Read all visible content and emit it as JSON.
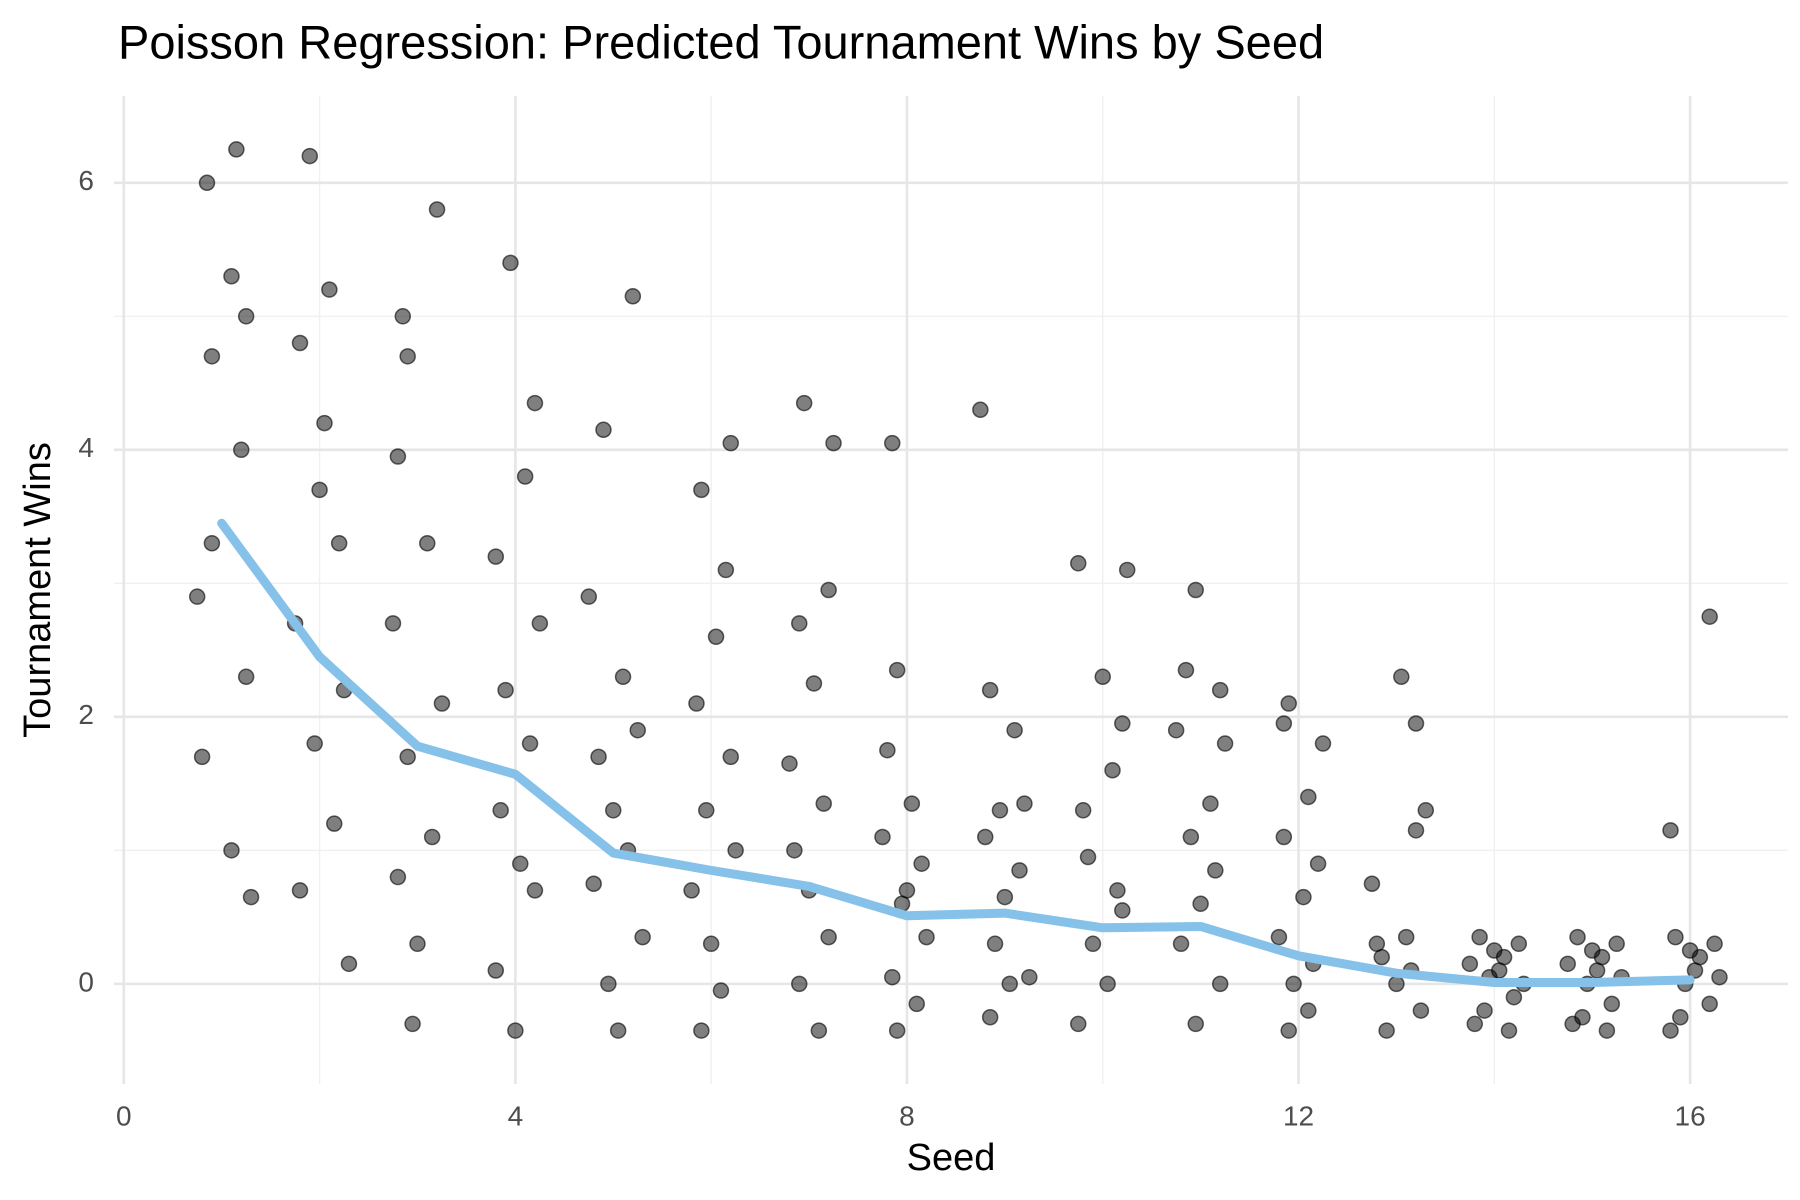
{
  "chart_data": {
    "type": "scatter",
    "title": "Poisson Regression: Predicted Tournament Wins by Seed",
    "x_label": "Seed",
    "y_label": "Tournament Wins",
    "xlim": [
      -0.1,
      17
    ],
    "ylim": [
      -0.75,
      6.65
    ],
    "xticks": [
      0,
      4,
      8,
      12,
      16
    ],
    "yticks": [
      0,
      2,
      4,
      6
    ],
    "grid": true,
    "color": "#000000",
    "x": [
      0.85,
      1.1,
      0.9,
      1.2,
      0.9,
      0.75,
      1.25,
      0.8,
      1.1,
      1.3,
      1.15,
      1.25,
      1.9,
      2.1,
      1.8,
      2.05,
      2.2,
      1.75,
      2.25,
      1.95,
      2.15,
      1.8,
      2.3,
      2.0,
      3.2,
      2.9,
      2.8,
      3.1,
      2.75,
      3.25,
      2.9,
      3.15,
      2.8,
      3.0,
      2.95,
      2.85,
      3.95,
      4.2,
      4.1,
      3.8,
      4.25,
      3.9,
      4.15,
      3.85,
      4.05,
      4.2,
      3.8,
      4.0,
      5.2,
      4.9,
      4.75,
      5.1,
      5.25,
      4.85,
      5.0,
      5.15,
      4.8,
      5.3,
      4.95,
      5.05,
      6.2,
      5.9,
      6.15,
      6.05,
      5.85,
      6.2,
      5.95,
      6.25,
      5.8,
      6.0,
      6.1,
      5.9,
      6.95,
      7.25,
      7.2,
      6.9,
      7.05,
      6.8,
      7.15,
      6.85,
      7.0,
      7.2,
      6.9,
      7.1,
      7.85,
      7.9,
      7.8,
      8.05,
      7.75,
      8.15,
      7.95,
      8.2,
      7.85,
      8.1,
      7.9,
      8.0,
      8.75,
      8.85,
      9.1,
      9.2,
      8.8,
      9.15,
      9.0,
      8.9,
      9.25,
      8.85,
      8.95,
      9.05,
      9.75,
      10.25,
      10.0,
      10.2,
      10.1,
      9.8,
      9.85,
      10.15,
      9.9,
      10.05,
      9.75,
      10.2,
      10.95,
      10.85,
      11.2,
      11.25,
      11.1,
      10.9,
      11.15,
      11.0,
      10.8,
      11.2,
      10.95,
      10.75,
      11.9,
      12.25,
      12.1,
      11.85,
      12.2,
      12.05,
      11.8,
      12.15,
      11.95,
      12.1,
      11.9,
      11.85,
      13.05,
      13.2,
      13.3,
      13.2,
      12.75,
      13.1,
      12.85,
      13.0,
      13.25,
      12.9,
      13.15,
      12.8,
      13.85,
      14.1,
      13.95,
      14.2,
      13.8,
      14.25,
      14.05,
      13.9,
      14.3,
      14.0,
      14.15,
      13.75,
      14.85,
      15.1,
      14.95,
      15.2,
      14.8,
      15.25,
      15.05,
      14.9,
      15.3,
      15.0,
      15.15,
      14.75,
      16.2,
      15.8,
      15.85,
      16.1,
      15.95,
      16.2,
      15.8,
      16.25,
      16.05,
      15.9,
      16.3,
      16.0
    ],
    "y": [
      6.0,
      5.3,
      4.7,
      4.0,
      3.3,
      2.9,
      2.3,
      1.7,
      1.0,
      0.65,
      6.25,
      5.0,
      6.2,
      5.2,
      4.8,
      4.2,
      3.3,
      2.7,
      2.2,
      1.8,
      1.2,
      0.7,
      0.15,
      3.7,
      5.8,
      4.7,
      3.95,
      3.3,
      2.7,
      2.1,
      1.7,
      1.1,
      0.8,
      0.3,
      -0.3,
      5.0,
      5.4,
      4.35,
      3.8,
      3.2,
      2.7,
      2.2,
      1.8,
      1.3,
      0.9,
      0.7,
      0.1,
      -0.35,
      5.15,
      4.15,
      2.9,
      2.3,
      1.9,
      1.7,
      1.3,
      1.0,
      0.75,
      0.35,
      0.0,
      -0.35,
      4.05,
      3.7,
      3.1,
      2.6,
      2.1,
      1.7,
      1.3,
      1.0,
      0.7,
      0.3,
      -0.05,
      -0.35,
      4.35,
      4.05,
      2.95,
      2.7,
      2.25,
      1.65,
      1.35,
      1.0,
      0.7,
      0.35,
      0.0,
      -0.35,
      4.05,
      2.35,
      1.75,
      1.35,
      1.1,
      0.9,
      0.6,
      0.35,
      0.05,
      -0.15,
      -0.35,
      0.7,
      4.3,
      2.2,
      1.9,
      1.35,
      1.1,
      0.85,
      0.65,
      0.3,
      0.05,
      -0.25,
      1.3,
      0.0,
      3.15,
      3.1,
      2.3,
      1.95,
      1.6,
      1.3,
      0.95,
      0.7,
      0.3,
      0.0,
      -0.3,
      0.55,
      2.95,
      2.35,
      2.2,
      1.8,
      1.35,
      1.1,
      0.85,
      0.6,
      0.3,
      0.0,
      -0.3,
      1.9,
      2.1,
      1.8,
      1.4,
      1.1,
      0.9,
      0.65,
      0.35,
      0.15,
      0.0,
      -0.2,
      -0.35,
      1.95,
      2.3,
      1.95,
      1.3,
      1.15,
      0.75,
      0.35,
      0.2,
      0.0,
      -0.2,
      -0.35,
      0.1,
      0.3,
      0.35,
      0.2,
      0.05,
      -0.1,
      -0.3,
      0.3,
      0.1,
      -0.2,
      0.0,
      0.25,
      -0.35,
      0.15,
      0.35,
      0.2,
      0.0,
      -0.15,
      -0.3,
      0.3,
      0.1,
      -0.25,
      0.05,
      0.25,
      -0.35,
      0.15,
      2.75,
      1.15,
      0.35,
      0.2,
      0.0,
      -0.15,
      -0.35,
      0.3,
      0.1,
      -0.25,
      0.05,
      0.25
    ],
    "fit": {
      "type": "line",
      "color": "#85c1e9",
      "x": [
        1,
        2,
        3,
        4,
        5,
        6,
        7,
        8,
        9,
        10,
        11,
        12,
        13,
        14,
        15,
        16
      ],
      "y": [
        3.45,
        2.45,
        1.78,
        1.57,
        0.98,
        0.85,
        0.73,
        0.51,
        0.53,
        0.42,
        0.43,
        0.21,
        0.08,
        0.01,
        0.01,
        0.03
      ]
    }
  }
}
